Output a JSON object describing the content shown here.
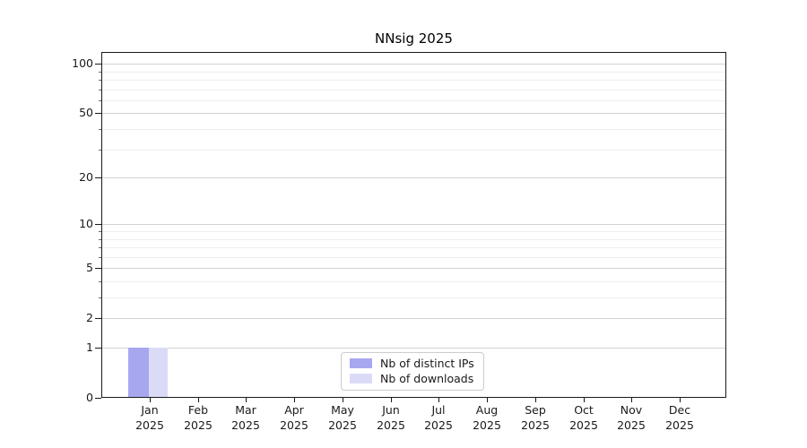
{
  "chart_data": {
    "type": "bar",
    "title": "NNsig 2025",
    "categories": [
      "Jan 2025",
      "Feb 2025",
      "Mar 2025",
      "Apr 2025",
      "May 2025",
      "Jun 2025",
      "Jul 2025",
      "Aug 2025",
      "Sep 2025",
      "Oct 2025",
      "Nov 2025",
      "Dec 2025"
    ],
    "series": [
      {
        "name": "Nb of distinct IPs",
        "color": "#a7a7f0",
        "values": [
          1,
          0,
          0,
          0,
          0,
          0,
          0,
          0,
          0,
          0,
          0,
          0
        ]
      },
      {
        "name": "Nb of downloads",
        "color": "#dbdbf8",
        "values": [
          1,
          0,
          0,
          0,
          0,
          0,
          0,
          0,
          0,
          0,
          0,
          0
        ]
      }
    ],
    "xlabel": "",
    "ylabel": "",
    "yscale": "log10(1+x)",
    "ylim": [
      0,
      118
    ],
    "y_major_ticks": [
      100,
      50,
      20,
      10,
      5,
      2,
      1,
      0
    ],
    "y_minor_ticks": [
      90,
      80,
      70,
      60,
      40,
      30,
      9,
      8,
      7,
      6,
      4,
      3
    ],
    "grid": "horizontal major+minor",
    "legend_position": "lower center"
  },
  "colors": {
    "background": "#ffffff",
    "spine": "#1a1a1a",
    "grid_major": "#d2d2d2",
    "grid_minor": "#efefef",
    "text": "#1a1a1a",
    "legend_border": "#cccccc"
  }
}
